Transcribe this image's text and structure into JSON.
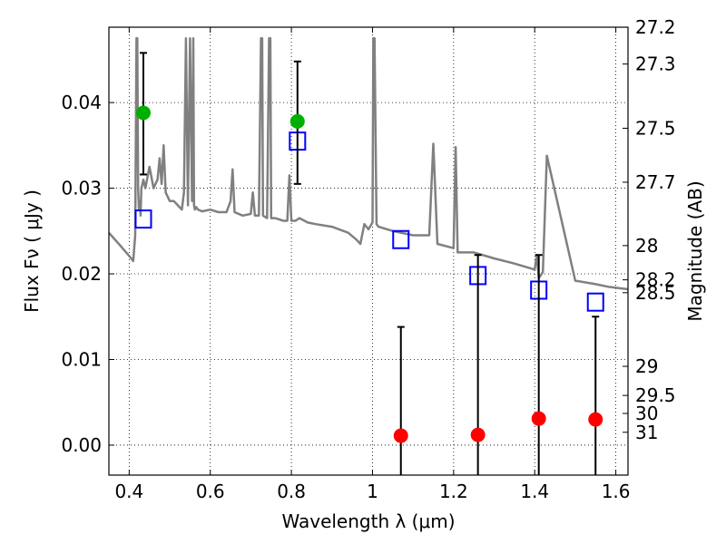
{
  "chart_data": {
    "type": "scatter",
    "xlabel": "Wavelength  λ (μm)",
    "ylabel": "Flux  Fν  ( μJy )",
    "ylabel_right": "Magnitude (AB)",
    "xlim": [
      0.35,
      1.63
    ],
    "ylim": [
      -0.0035,
      0.0488
    ],
    "grid": true,
    "x_ticks": [
      0.4,
      0.6,
      0.8,
      1.0,
      1.2,
      1.4,
      1.6
    ],
    "x_tick_labels": [
      "0.4",
      "0.6",
      "0.8",
      "1",
      "1.2",
      "1.4",
      "1.6"
    ],
    "y_ticks": [
      0.0,
      0.01,
      0.02,
      0.03,
      0.04
    ],
    "y_tick_labels": [
      "0.00",
      "0.01",
      "0.02",
      "0.03",
      "0.04"
    ],
    "right_ticks": [
      {
        "flux": 0.0488,
        "label": "27.2"
      },
      {
        "flux": 0.0445,
        "label": "27.3"
      },
      {
        "flux": 0.037,
        "label": "27.5"
      },
      {
        "flux": 0.0307,
        "label": "27.7"
      },
      {
        "flux": 0.0233,
        "label": "28"
      },
      {
        "flux": 0.0193,
        "label": "28.2"
      },
      {
        "flux": 0.0178,
        "label": "28.5"
      },
      {
        "flux": 0.0092,
        "label": "29"
      },
      {
        "flux": 0.0058,
        "label": "29.5"
      },
      {
        "flux": 0.0037,
        "label": "30"
      },
      {
        "flux": 0.0015,
        "label": "31"
      }
    ],
    "series": [
      {
        "kind": "line",
        "color": "#808080",
        "x": [
          0.35,
          0.38,
          0.405,
          0.41,
          0.415,
          0.418,
          0.42,
          0.422,
          0.424,
          0.426,
          0.428,
          0.43,
          0.435,
          0.44,
          0.45,
          0.46,
          0.47,
          0.475,
          0.48,
          0.485,
          0.49,
          0.5,
          0.51,
          0.52,
          0.53,
          0.535,
          0.54,
          0.545,
          0.55,
          0.555,
          0.558,
          0.56,
          0.562,
          0.565,
          0.57,
          0.58,
          0.6,
          0.62,
          0.64,
          0.65,
          0.655,
          0.66,
          0.68,
          0.7,
          0.705,
          0.71,
          0.72,
          0.725,
          0.728,
          0.73,
          0.74,
          0.745,
          0.748,
          0.75,
          0.76,
          0.78,
          0.79,
          0.795,
          0.8,
          0.81,
          0.82,
          0.84,
          0.86,
          0.9,
          0.94,
          0.96,
          0.97,
          0.98,
          0.99,
          1.0,
          1.002,
          1.005,
          1.01,
          1.015,
          1.05,
          1.1,
          1.14,
          1.15,
          1.16,
          1.2,
          1.205,
          1.21,
          1.25,
          1.3,
          1.35,
          1.4,
          1.405,
          1.41,
          1.42,
          1.43,
          1.5,
          1.55,
          1.58,
          1.63
        ],
        "values": [
          0.0248,
          0.0232,
          0.0218,
          0.0215,
          0.0245,
          0.0475,
          0.0475,
          0.03,
          0.0275,
          0.0285,
          0.0268,
          0.03,
          0.031,
          0.03,
          0.0325,
          0.03,
          0.031,
          0.0335,
          0.0305,
          0.035,
          0.0295,
          0.0285,
          0.0285,
          0.028,
          0.0275,
          0.0295,
          0.0475,
          0.028,
          0.0475,
          0.0285,
          0.0475,
          0.028,
          0.0275,
          0.0278,
          0.0275,
          0.0273,
          0.0275,
          0.0272,
          0.0272,
          0.0285,
          0.0322,
          0.0272,
          0.0268,
          0.027,
          0.0295,
          0.0268,
          0.0268,
          0.0475,
          0.0475,
          0.0268,
          0.0265,
          0.0475,
          0.0475,
          0.0265,
          0.0265,
          0.0262,
          0.0262,
          0.0315,
          0.0262,
          0.0262,
          0.0265,
          0.026,
          0.0258,
          0.0255,
          0.0248,
          0.024,
          0.0235,
          0.0258,
          0.0252,
          0.026,
          0.0475,
          0.0475,
          0.0258,
          0.0255,
          0.025,
          0.0245,
          0.0245,
          0.0352,
          0.0235,
          0.023,
          0.0348,
          0.0225,
          0.0225,
          0.0218,
          0.0212,
          0.0205,
          0.0222,
          0.0195,
          0.0202,
          0.0338,
          0.0192,
          0.0188,
          0.0185,
          0.0182
        ]
      },
      {
        "kind": "open-square",
        "color": "#0000ff",
        "x": [
          0.435,
          0.815,
          1.07,
          1.26,
          1.41,
          1.55
        ],
        "values": [
          0.0264,
          0.0355,
          0.024,
          0.0198,
          0.0181,
          0.0167
        ]
      },
      {
        "kind": "filled-circle",
        "color": "#00b000",
        "x": [
          0.435,
          0.815
        ],
        "values": [
          0.0388,
          0.0378
        ],
        "err_low": [
          0.0316,
          0.0305
        ],
        "err_high": [
          0.0458,
          0.0448
        ]
      },
      {
        "kind": "filled-circle",
        "color": "#ff0000",
        "x": [
          1.07,
          1.26,
          1.41,
          1.55
        ],
        "values": [
          0.0011,
          0.0012,
          0.0031,
          0.003
        ],
        "err_low": [
          -0.0035,
          -0.0035,
          -0.0035,
          -0.0035
        ],
        "err_high": [
          0.0138,
          0.0222,
          0.0222,
          0.015
        ]
      }
    ]
  }
}
